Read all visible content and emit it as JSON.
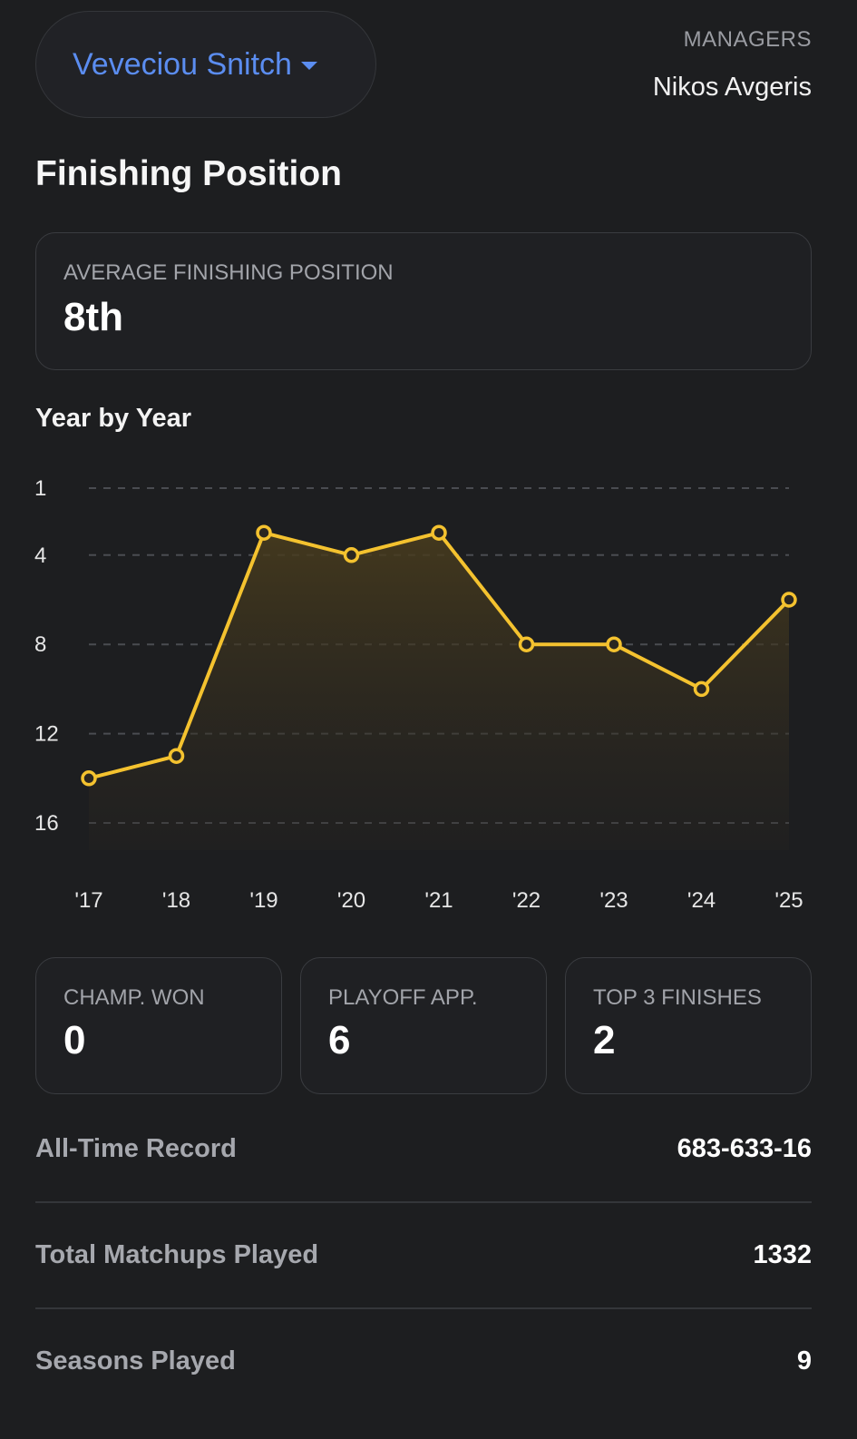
{
  "header": {
    "team_name": "Veveciou Snitch",
    "managers_label": "MANAGERS",
    "manager_name": "Nikos Avgeris"
  },
  "section_title": "Finishing Position",
  "average_card": {
    "label": "AVERAGE FINISHING POSITION",
    "value": "8th"
  },
  "year_by_year_title": "Year by Year",
  "colors": {
    "line": "#f4c22f",
    "accent": "#5b8df0",
    "background": "#1d1e20"
  },
  "chart_data": {
    "type": "line",
    "categories": [
      "'17",
      "'18",
      "'19",
      "'20",
      "'21",
      "'22",
      "'23",
      "'24",
      "'25"
    ],
    "series": [
      {
        "values": [
          14,
          13,
          3,
          4,
          3,
          8,
          8,
          10,
          6
        ]
      }
    ],
    "y_ticks": [
      1,
      4,
      8,
      12,
      16
    ],
    "ylim": [
      1,
      16
    ],
    "y_inverted": true,
    "grid": true,
    "area_fill": true
  },
  "stats": [
    {
      "label": "CHAMP. WON",
      "value": "0"
    },
    {
      "label": "PLAYOFF APP.",
      "value": "6"
    },
    {
      "label": "TOP 3 FINISHES",
      "value": "2"
    }
  ],
  "rows": [
    {
      "label": "All-Time Record",
      "value": "683-633-16"
    },
    {
      "label": "Total Matchups Played",
      "value": "1332"
    },
    {
      "label": "Seasons Played",
      "value": "9"
    }
  ]
}
